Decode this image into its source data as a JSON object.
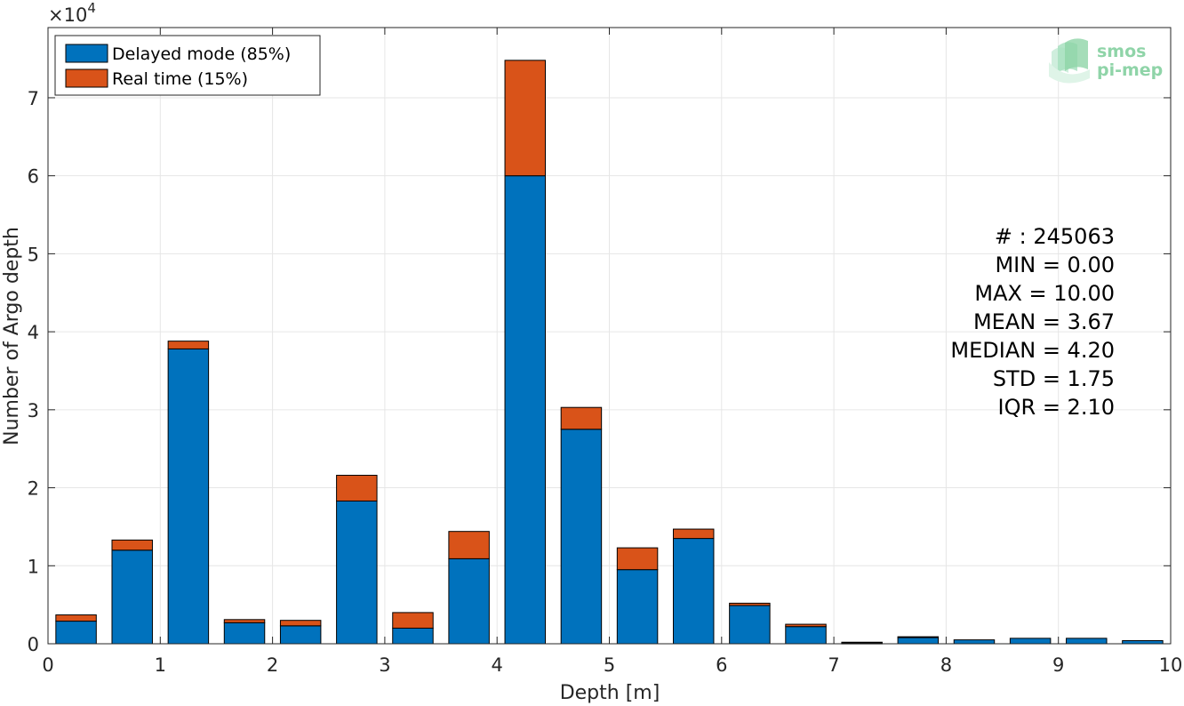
{
  "chart_data": {
    "type": "bar",
    "stacked": true,
    "xlabel": "Depth [m]",
    "ylabel": "Number of Argo depth",
    "y_multiplier_base": "×10",
    "y_multiplier_exp": "4",
    "xlim": [
      0,
      10
    ],
    "ylim": [
      0,
      7.9
    ],
    "xticks": [
      0,
      1,
      2,
      3,
      4,
      5,
      6,
      7,
      8,
      9,
      10
    ],
    "yticks": [
      0,
      1,
      2,
      3,
      4,
      5,
      6,
      7
    ],
    "grid": true,
    "legend_position": "top-left",
    "bar_width": 0.36,
    "x": [
      0.25,
      0.75,
      1.25,
      1.75,
      2.25,
      2.75,
      3.25,
      3.75,
      4.25,
      4.75,
      5.25,
      5.75,
      6.25,
      6.75,
      7.25,
      7.75,
      8.25,
      8.75,
      9.25,
      9.75
    ],
    "series": [
      {
        "name": "Delayed mode (85%)",
        "color": "#0072bd",
        "values": [
          0.29,
          1.2,
          3.78,
          0.27,
          0.23,
          1.83,
          0.2,
          1.09,
          6.0,
          2.75,
          0.95,
          1.35,
          0.49,
          0.22,
          0.01,
          0.08,
          0.05,
          0.07,
          0.07,
          0.04
        ]
      },
      {
        "name": "Real time (15%)",
        "color": "#d95319",
        "values": [
          0.08,
          0.13,
          0.1,
          0.04,
          0.07,
          0.33,
          0.2,
          0.35,
          1.48,
          0.28,
          0.28,
          0.12,
          0.03,
          0.03,
          0.01,
          0.01,
          0.0,
          0.0,
          0.0,
          0.0
        ]
      }
    ],
    "stats": [
      "# : 245063",
      "MIN = 0.00",
      "MAX =  10.00",
      "MEAN = 3.67",
      "MEDIAN = 4.20",
      "STD = 1.75",
      "IQR = 2.10"
    ]
  },
  "logo": {
    "line1": "smos",
    "line2": "pi-mep",
    "color": "#8fd4a8"
  }
}
